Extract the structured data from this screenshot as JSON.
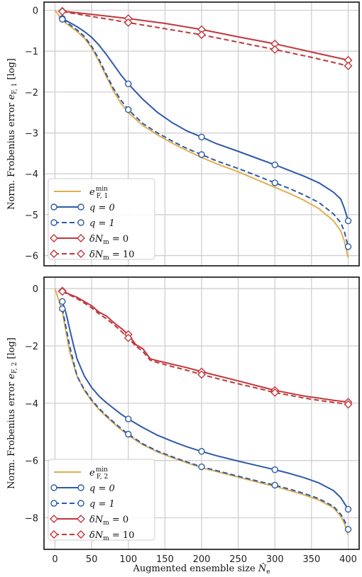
{
  "chart_data": [
    {
      "type": "line",
      "ylabel": "Norm. Frobenius error e_F,1 [log]",
      "ylabel_parts": {
        "prefix": "Norm. Frobenius error ",
        "var": "e",
        "sub": "F, 1",
        "suffix": " [log]"
      },
      "xlabel": "",
      "xlim": [
        -15,
        415
      ],
      "ylim": [
        -6.25,
        0.2
      ],
      "xticks": [
        0,
        50,
        100,
        150,
        200,
        250,
        300,
        350,
        400
      ],
      "yticks": [
        0,
        -1,
        -2,
        -3,
        -4,
        -5,
        -6
      ],
      "grid": true,
      "legend_position": "lower-left",
      "series": [
        {
          "name": "e_F,1^min",
          "legend": {
            "main": "e",
            "sub": "F, 1",
            "sup": "min"
          },
          "color": "#e0b04f",
          "dash": false,
          "marker": "none",
          "x": [
            0,
            10,
            20,
            30,
            40,
            50,
            60,
            70,
            80,
            90,
            100,
            120,
            140,
            160,
            180,
            200,
            220,
            250,
            280,
            300,
            320,
            340,
            360,
            380,
            390,
            395,
            400
          ],
          "y": [
            0,
            -0.25,
            -0.38,
            -0.52,
            -0.68,
            -0.92,
            -1.25,
            -1.62,
            -1.98,
            -2.28,
            -2.5,
            -2.82,
            -3.05,
            -3.25,
            -3.43,
            -3.6,
            -3.75,
            -3.95,
            -4.18,
            -4.33,
            -4.48,
            -4.65,
            -4.85,
            -5.15,
            -5.4,
            -5.65,
            -6.05
          ]
        },
        {
          "name": "q = 0",
          "legend": {
            "main": "q = 0"
          },
          "color": "#2e5aa8",
          "dash": false,
          "marker": "circle",
          "x": [
            10,
            20,
            30,
            40,
            50,
            60,
            70,
            80,
            90,
            100,
            120,
            140,
            160,
            180,
            200,
            220,
            250,
            280,
            300,
            320,
            340,
            360,
            380,
            390,
            395,
            400
          ],
          "y": [
            -0.2,
            -0.3,
            -0.4,
            -0.52,
            -0.66,
            -0.85,
            -1.08,
            -1.33,
            -1.58,
            -1.8,
            -2.18,
            -2.5,
            -2.75,
            -2.95,
            -3.1,
            -3.26,
            -3.45,
            -3.65,
            -3.78,
            -3.92,
            -4.06,
            -4.22,
            -4.45,
            -4.62,
            -4.85,
            -5.15
          ],
          "markers_x": [
            10,
            100,
            200,
            300,
            400
          ]
        },
        {
          "name": "q = 1",
          "legend": {
            "main": "q = 1"
          },
          "color": "#2e5aa8",
          "dash": true,
          "marker": "circle",
          "x": [
            10,
            20,
            30,
            40,
            50,
            60,
            70,
            80,
            90,
            100,
            120,
            140,
            160,
            180,
            200,
            220,
            250,
            280,
            300,
            320,
            340,
            360,
            380,
            390,
            395,
            400
          ],
          "y": [
            -0.22,
            -0.35,
            -0.48,
            -0.64,
            -0.88,
            -1.2,
            -1.57,
            -1.92,
            -2.2,
            -2.43,
            -2.77,
            -3.0,
            -3.2,
            -3.38,
            -3.53,
            -3.68,
            -3.87,
            -4.08,
            -4.22,
            -4.36,
            -4.52,
            -4.7,
            -4.98,
            -5.2,
            -5.42,
            -5.78
          ],
          "markers_x": [
            10,
            100,
            200,
            300,
            400
          ]
        },
        {
          "name": "δN_m = 0",
          "legend": {
            "main": "δN",
            "sub": "m",
            "post": " = 0"
          },
          "color": "#c1373c",
          "dash": false,
          "marker": "diamond",
          "x": [
            10,
            50,
            100,
            150,
            200,
            250,
            300,
            350,
            400
          ],
          "y": [
            -0.02,
            -0.1,
            -0.2,
            -0.32,
            -0.47,
            -0.65,
            -0.82,
            -1.02,
            -1.22
          ],
          "markers_x": [
            10,
            100,
            200,
            300,
            400
          ]
        },
        {
          "name": "δN_m = 10",
          "legend": {
            "main": "δN",
            "sub": "m",
            "post": " = 10"
          },
          "color": "#c1373c",
          "dash": true,
          "marker": "diamond",
          "x": [
            10,
            50,
            100,
            150,
            200,
            250,
            300,
            350,
            400
          ],
          "y": [
            -0.03,
            -0.15,
            -0.3,
            -0.45,
            -0.6,
            -0.78,
            -0.96,
            -1.15,
            -1.36
          ],
          "markers_x": [
            10,
            100,
            200,
            300,
            400
          ]
        }
      ]
    },
    {
      "type": "line",
      "ylabel": "Norm. Frobenius error e_F,2 [log]",
      "ylabel_parts": {
        "prefix": "Norm. Frobenius error ",
        "var": "e",
        "sub": "F, 2",
        "suffix": " [log]"
      },
      "xlabel": "Augmented ensemble size N̂_e",
      "xlabel_parts": {
        "prefix": "Augmented ensemble size ",
        "var": "N̂",
        "sub": "e"
      },
      "xlim": [
        -15,
        415
      ],
      "ylim": [
        -9.1,
        0.4
      ],
      "xticks": [
        0,
        50,
        100,
        150,
        200,
        250,
        300,
        350,
        400
      ],
      "yticks": [
        0,
        -2,
        -4,
        -6,
        -8
      ],
      "grid": true,
      "legend_position": "lower-left",
      "series": [
        {
          "name": "e_F,2^min",
          "legend": {
            "main": "e",
            "sub": "F, 2",
            "sup": "min"
          },
          "color": "#e0b04f",
          "dash": false,
          "marker": "none",
          "x": [
            0,
            10,
            20,
            30,
            40,
            50,
            60,
            70,
            80,
            90,
            100,
            120,
            140,
            160,
            180,
            200,
            220,
            250,
            280,
            300,
            320,
            340,
            360,
            380,
            390,
            395,
            400
          ],
          "y": [
            0,
            -0.8,
            -2.2,
            -3.05,
            -3.55,
            -3.92,
            -4.22,
            -4.47,
            -4.7,
            -4.92,
            -5.12,
            -5.45,
            -5.7,
            -5.9,
            -6.08,
            -6.25,
            -6.38,
            -6.58,
            -6.78,
            -6.9,
            -7.05,
            -7.2,
            -7.38,
            -7.65,
            -7.95,
            -8.2,
            -8.6
          ]
        },
        {
          "name": "q = 0",
          "legend": {
            "main": "q = 0"
          },
          "color": "#2e5aa8",
          "dash": false,
          "marker": "circle",
          "x": [
            10,
            15,
            20,
            25,
            30,
            40,
            50,
            60,
            70,
            80,
            90,
            100,
            120,
            140,
            160,
            180,
            200,
            220,
            250,
            280,
            300,
            320,
            340,
            360,
            380,
            390,
            395,
            400
          ],
          "y": [
            -0.45,
            -0.85,
            -1.4,
            -1.95,
            -2.45,
            -3.05,
            -3.45,
            -3.75,
            -3.98,
            -4.18,
            -4.38,
            -4.55,
            -4.85,
            -5.12,
            -5.33,
            -5.52,
            -5.68,
            -5.83,
            -6.02,
            -6.2,
            -6.32,
            -6.45,
            -6.6,
            -6.78,
            -7.05,
            -7.3,
            -7.5,
            -7.7
          ],
          "markers_x": [
            10,
            100,
            200,
            300,
            400
          ]
        },
        {
          "name": "q = 1",
          "legend": {
            "main": "q = 1"
          },
          "color": "#2e5aa8",
          "dash": true,
          "marker": "circle",
          "x": [
            10,
            20,
            30,
            40,
            50,
            60,
            70,
            80,
            90,
            100,
            120,
            140,
            160,
            180,
            200,
            220,
            250,
            280,
            300,
            320,
            340,
            360,
            380,
            390,
            395,
            400
          ],
          "y": [
            -0.7,
            -2.0,
            -3.05,
            -3.52,
            -3.88,
            -4.18,
            -4.43,
            -4.66,
            -4.88,
            -5.08,
            -5.42,
            -5.67,
            -5.87,
            -6.05,
            -6.22,
            -6.35,
            -6.55,
            -6.74,
            -6.86,
            -7.0,
            -7.15,
            -7.33,
            -7.6,
            -7.88,
            -8.1,
            -8.4
          ],
          "markers_x": [
            10,
            100,
            200,
            300,
            400
          ]
        },
        {
          "name": "δN_m = 0",
          "legend": {
            "main": "δN",
            "sub": "m",
            "post": " = 0"
          },
          "color": "#c1373c",
          "dash": false,
          "marker": "diamond",
          "x": [
            10,
            20,
            30,
            40,
            50,
            60,
            70,
            80,
            90,
            100,
            110,
            120,
            130,
            140,
            160,
            180,
            200,
            220,
            250,
            280,
            300,
            320,
            340,
            360,
            380,
            400
          ],
          "y": [
            -0.08,
            -0.2,
            -0.3,
            -0.45,
            -0.6,
            -0.82,
            -0.95,
            -1.18,
            -1.38,
            -1.6,
            -1.95,
            -2.1,
            -2.45,
            -2.52,
            -2.64,
            -2.76,
            -2.9,
            -3.03,
            -3.22,
            -3.42,
            -3.55,
            -3.65,
            -3.75,
            -3.82,
            -3.9,
            -3.96
          ],
          "markers_x": [
            10,
            100,
            200,
            300,
            400
          ]
        },
        {
          "name": "δN_m = 10",
          "legend": {
            "main": "δN",
            "sub": "m",
            "post": " = 10"
          },
          "color": "#c1373c",
          "dash": true,
          "marker": "diamond",
          "x": [
            10,
            20,
            30,
            40,
            50,
            60,
            70,
            80,
            90,
            100,
            110,
            120,
            130,
            140,
            160,
            180,
            200,
            220,
            250,
            280,
            300,
            320,
            340,
            360,
            380,
            400
          ],
          "y": [
            -0.1,
            -0.22,
            -0.35,
            -0.5,
            -0.67,
            -0.88,
            -1.05,
            -1.25,
            -1.48,
            -1.72,
            -2.0,
            -2.2,
            -2.5,
            -2.58,
            -2.72,
            -2.85,
            -3.0,
            -3.13,
            -3.32,
            -3.5,
            -3.63,
            -3.72,
            -3.82,
            -3.9,
            -3.97,
            -4.04
          ],
          "markers_x": [
            10,
            100,
            200,
            300,
            400
          ]
        }
      ]
    }
  ]
}
